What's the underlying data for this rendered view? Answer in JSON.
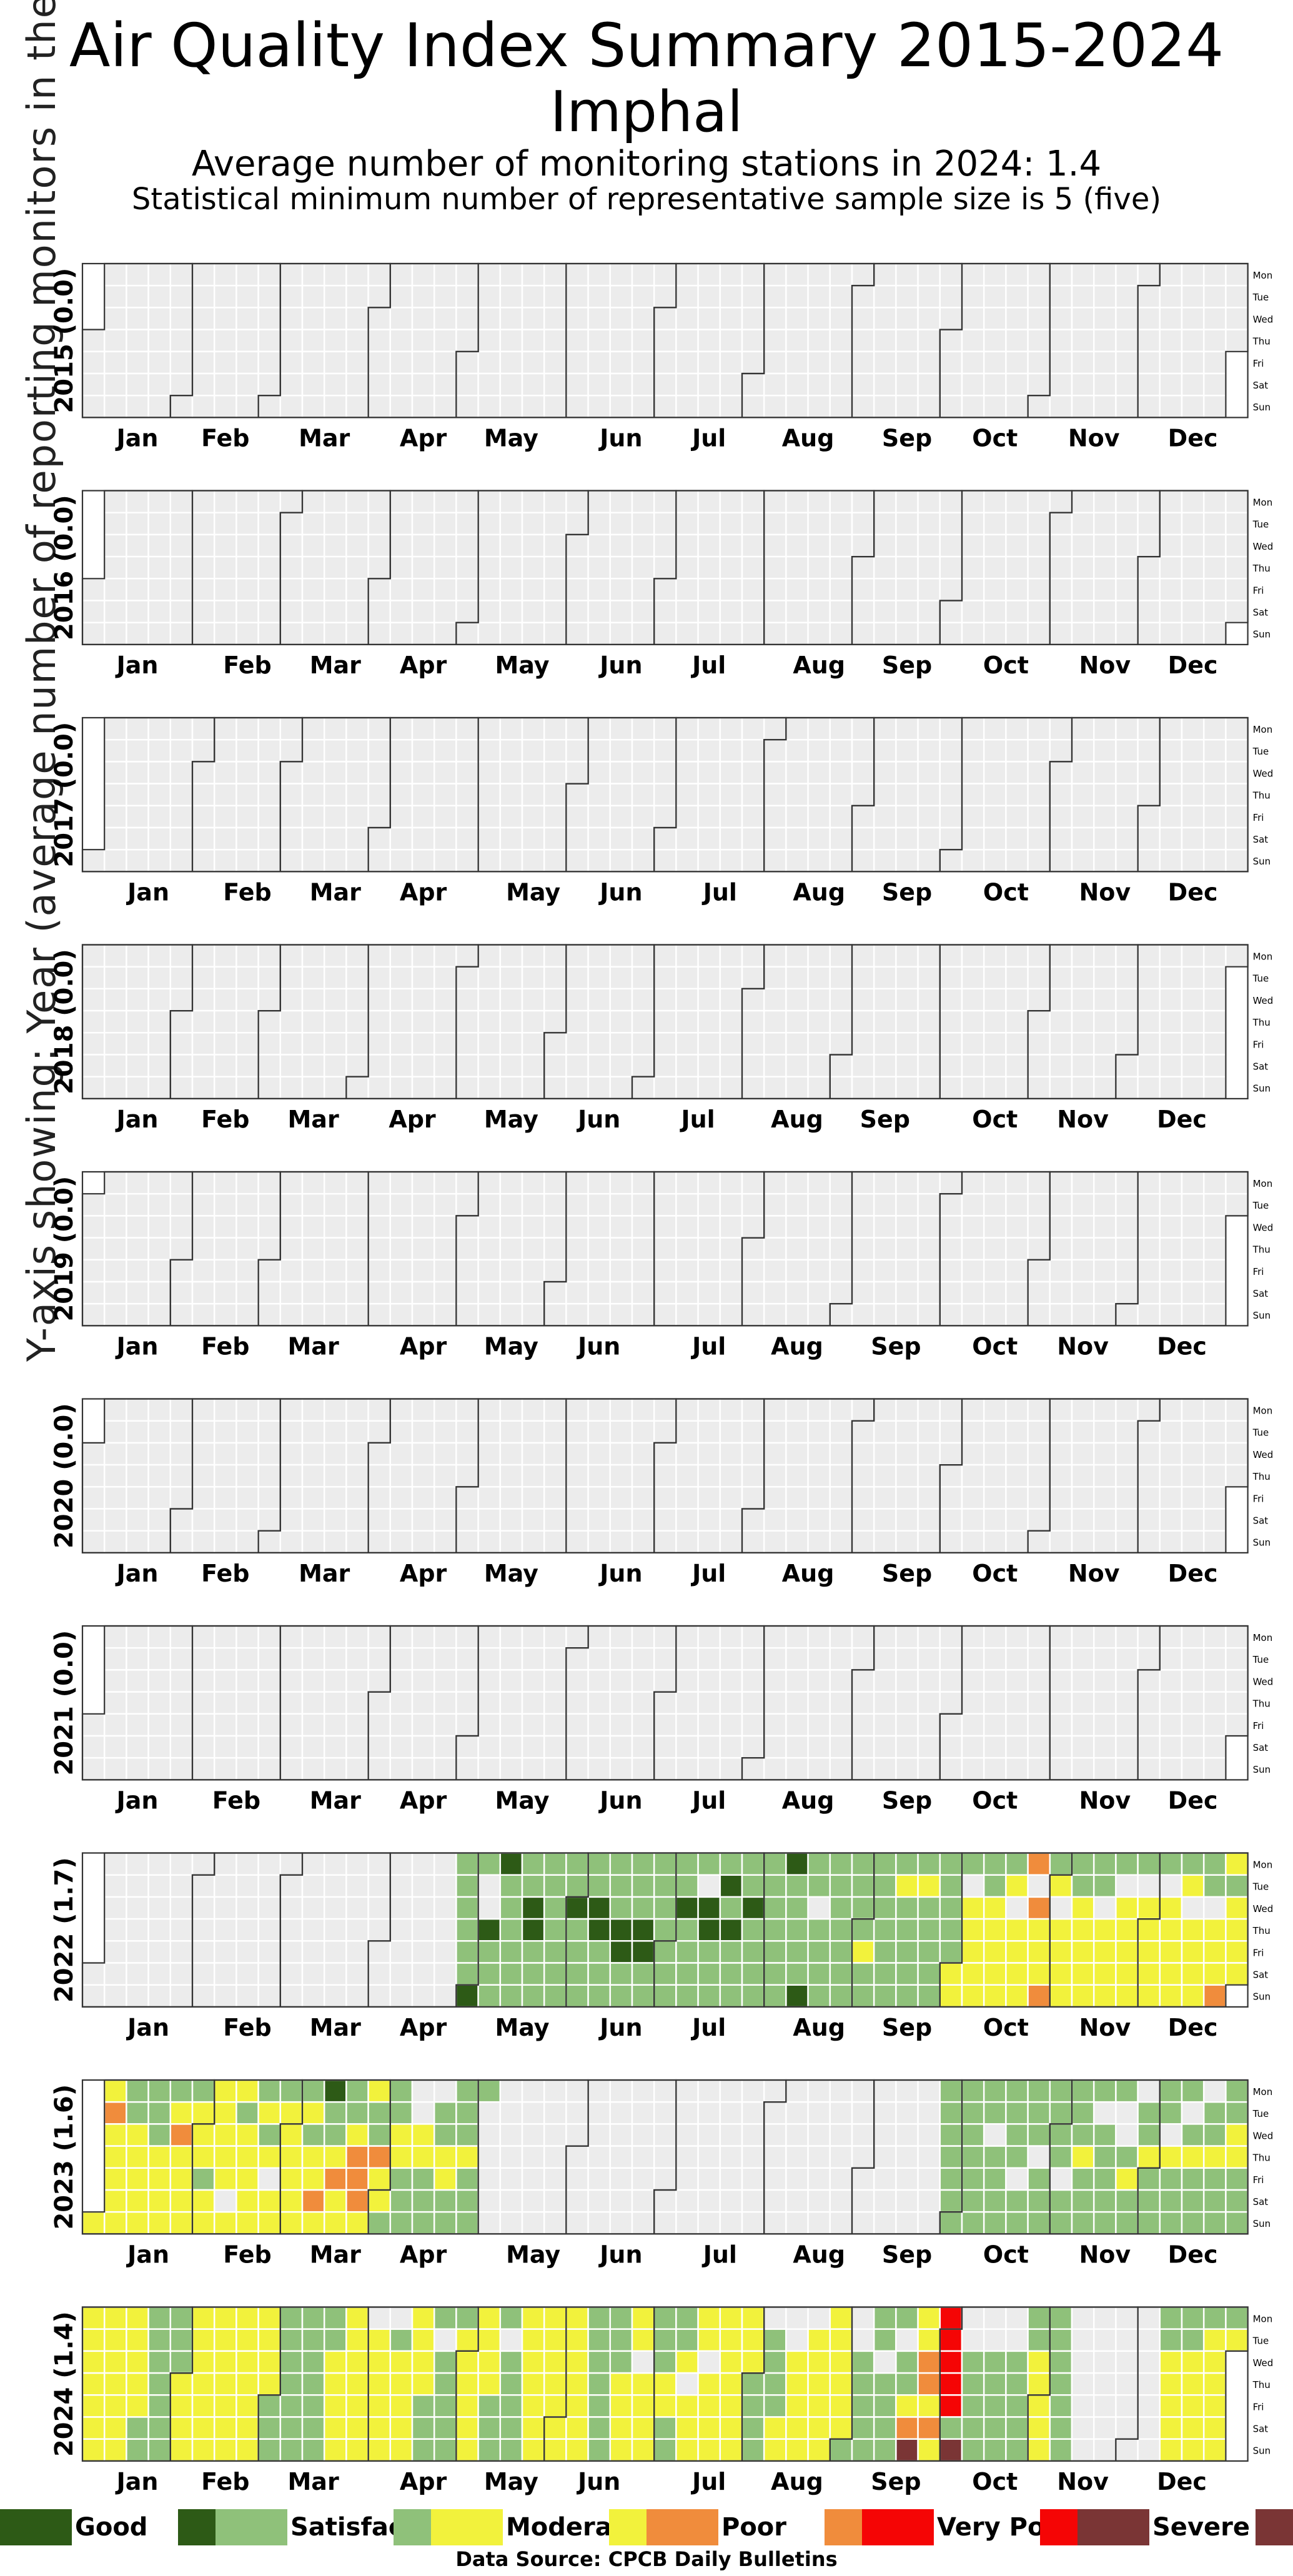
{
  "title": "Air Quality Index Summary 2015-2024",
  "city": "Imphal",
  "subtitle": "Average number of monitoring stations in 2024: 1.4",
  "subtitle2": "Statistical minimum number of representative sample size is 5 (five)",
  "y_axis_label": "Y-axis showing: Year (average number of reporting monitors in the year)",
  "source": "Data Source: CPCB Daily Bulletins",
  "colors": {
    "no_data": "#ececec",
    "good": "#2d5a16",
    "satisfactory": "#8fc17a",
    "moderate": "#f2f23c",
    "poor": "#f08c3c",
    "very_poor": "#f50505",
    "severe": "#7a3535"
  },
  "legend": [
    {
      "label": "Good",
      "color": "#2d5a16"
    },
    {
      "label": "Satisfactory",
      "color": "#8fc17a"
    },
    {
      "label": "Moderate",
      "color": "#f2f23c"
    },
    {
      "label": "Poor",
      "color": "#f08c3c"
    },
    {
      "label": "Very Poor",
      "color": "#f50505"
    },
    {
      "label": "Severe",
      "color": "#7a3535"
    }
  ],
  "chart_data": {
    "type": "heatmap",
    "layout": "calendar",
    "title": "Air Quality Index Summary 2015-2024",
    "months": [
      "Jan",
      "Feb",
      "Mar",
      "Apr",
      "May",
      "Jun",
      "Jul",
      "Aug",
      "Sep",
      "Oct",
      "Nov",
      "Dec"
    ],
    "weekdays": [
      "Mon",
      "Tue",
      "Wed",
      "Thu",
      "Fri",
      "Sat",
      "Sun"
    ],
    "categories": [
      "Good",
      "Satisfactory",
      "Moderate",
      "Poor",
      "Very Poor",
      "Severe"
    ],
    "years": [
      {
        "year": 2015,
        "label": "2015 (0.0)",
        "monitors": 0.0,
        "segments": []
      },
      {
        "year": 2016,
        "label": "2016 (0.0)",
        "monitors": 0.0,
        "segments": []
      },
      {
        "year": 2017,
        "label": "2017 (0.0)",
        "monitors": 0.0,
        "segments": []
      },
      {
        "year": 2018,
        "label": "2018 (0.0)",
        "monitors": 0.0,
        "segments": []
      },
      {
        "year": 2019,
        "label": "2019 (0.0)",
        "monitors": 0.0,
        "segments": []
      },
      {
        "year": 2020,
        "label": "2020 (0.0)",
        "monitors": 0.0,
        "segments": []
      },
      {
        "year": 2021,
        "label": "2021 (0.0)",
        "monitors": 0.0,
        "segments": []
      },
      {
        "year": 2022,
        "label": "2022 (1.7)",
        "monitors": 1.7,
        "segments": [
          {
            "from": "2022-04-25",
            "to": "2022-09-30",
            "base": "S",
            "overrides": {
              "2022-05-01": "G",
              "2022-05-05": "G",
              "2022-05-09": "G",
              "2022-05-18": "G",
              "2022-05-19": "G",
              "2022-06-01": "G",
              "2022-06-08": "G",
              "2022-06-09": "G",
              "2022-06-16": "G",
              "2022-06-17": "G",
              "2022-06-23": "G",
              "2022-06-24": "G",
              "2022-07-06": "G",
              "2022-07-13": "G",
              "2022-07-14": "G",
              "2022-07-19": "G",
              "2022-07-21": "G",
              "2022-07-27": "G",
              "2022-08-08": "G",
              "2022-08-14": "G",
              "2022-05-03": "N",
              "2022-05-04": "N",
              "2022-07-12": "N",
              "2022-08-17": "N",
              "2022-09-02": "M",
              "2022-09-13": "M",
              "2022-09-20": "M"
            }
          },
          {
            "from": "2022-10-01",
            "to": "2022-12-31",
            "base": "M",
            "overrides": {
              "2022-10-03": "S",
              "2022-10-10": "S",
              "2022-10-11": "S",
              "2022-10-17": "S",
              "2022-10-24": "P",
              "2022-10-31": "S",
              "2022-11-07": "S",
              "2022-11-08": "S",
              "2022-11-14": "S",
              "2022-11-15": "S",
              "2022-11-21": "S",
              "2022-11-28": "S",
              "2022-12-05": "S",
              "2022-12-12": "S",
              "2022-12-19": "S",
              "2022-12-20": "S",
              "2022-12-27": "S",
              "2022-10-04": "N",
              "2022-10-19": "N",
              "2022-10-25": "N",
              "2022-11-02": "N",
              "2022-11-16": "N",
              "2022-11-22": "N",
              "2022-11-29": "N",
              "2022-12-06": "N",
              "2022-12-14": "N",
              "2022-12-21": "N",
              "2022-10-26": "P",
              "2022-10-30": "P",
              "2022-12-25": "P"
            }
          }
        ]
      },
      {
        "year": 2023,
        "label": "2023 (1.6)",
        "monitors": 1.6,
        "segments": [
          {
            "from": "2023-01-01",
            "to": "2023-03-31",
            "base": "M",
            "overrides": {
              "2023-01-03": "P",
              "2023-01-25": "P",
              "2023-02-03": "S",
              "2023-02-14": "S",
              "2023-02-20": "S",
              "2023-02-22": "S",
              "2023-02-27": "S",
              "2023-03-06": "S",
              "2023-03-08": "S",
              "2023-03-14": "S",
              "2023-03-15": "S",
              "2023-03-20": "S",
              "2023-03-21": "S",
              "2023-03-28": "S",
              "2023-03-29": "S",
              "2023-01-09": "S",
              "2023-01-10": "S",
              "2023-01-16": "S",
              "2023-01-17": "S",
              "2023-01-18": "S",
              "2023-01-23": "S",
              "2023-01-30": "S",
              "2023-03-13": "G",
              "2023-03-17": "P",
              "2023-03-23": "P",
              "2023-03-24": "P",
              "2023-03-25": "P",
              "2023-03-30": "P",
              "2023-03-11": "P",
              "2023-02-24": "N",
              "2023-02-11": "N"
            }
          },
          {
            "from": "2023-04-01",
            "to": "2023-05-07",
            "base": "S",
            "overrides": {
              "2023-04-01": "M",
              "2023-04-05": "M",
              "2023-04-06": "M",
              "2023-04-12": "M",
              "2023-04-13": "M",
              "2023-04-20": "M",
              "2023-04-21": "M",
              "2023-04-27": "M",
              "2023-04-10": "N",
              "2023-04-11": "N",
              "2023-04-17": "N",
              "2023-05-02": "N",
              "2023-05-03": "N",
              "2023-05-04": "N",
              "2023-05-05": "N",
              "2023-05-06": "N",
              "2023-05-07": "N"
            }
          },
          {
            "from": "2023-09-25",
            "to": "2023-12-31",
            "base": "S",
            "overrides": {
              "2023-10-11": "N",
              "2023-10-20": "N",
              "2023-10-26": "N",
              "2023-11-03": "N",
              "2023-11-14": "N",
              "2023-11-21": "N",
              "2023-11-22": "N",
              "2023-11-27": "N",
              "2023-12-06": "N",
              "2023-12-12": "N",
              "2023-12-18": "N",
              "2023-11-09": "M",
              "2023-11-24": "M",
              "2023-11-30": "M",
              "2023-12-21": "M",
              "2023-12-27": "M",
              "2023-12-28": "M",
              "2023-12-14": "M",
              "2023-12-07": "M"
            }
          }
        ]
      },
      {
        "year": 2024,
        "label": "2024 (1.4)",
        "monitors": 1.4,
        "segments": [
          {
            "from": "2024-01-01",
            "to": "2024-10-31",
            "base": "mix",
            "overrides": {
              "2024-09-30": "V",
              "2024-10-01": "V",
              "2024-10-02": "V",
              "2024-10-03": "V",
              "2024-10-04": "V",
              "2024-09-28": "P",
              "2024-09-25": "P",
              "2024-09-26": "P",
              "2024-09-21": "P",
              "2024-09-22": "X",
              "2024-10-06": "X",
              "2024-08-05": "N",
              "2024-08-12": "N",
              "2024-08-13": "N",
              "2024-08-19": "N",
              "2024-09-02": "N",
              "2024-09-03": "N",
              "2024-09-11": "N",
              "2024-09-17": "N",
              "2024-10-07": "N",
              "2024-10-08": "N",
              "2024-10-14": "N",
              "2024-10-15": "N",
              "2024-10-21": "N",
              "2024-10-22": "N",
              "2024-04-01": "N",
              "2024-04-08": "N",
              "2024-04-23": "N",
              "2024-05-14": "N",
              "2024-06-26": "N",
              "2024-07-11": "N",
              "2024-07-17": "N"
            }
          },
          {
            "from": "2024-11-01",
            "to": "2024-12-31",
            "base": "M",
            "overrides": {
              "2024-11-04": "S",
              "2024-11-05": "S",
              "2024-11-06": "S",
              "2024-11-07": "S",
              "2024-11-08": "S",
              "2024-11-09": "S",
              "2024-11-10": "S",
              "2024-11-11": "N",
              "2024-11-12": "N",
              "2024-11-13": "N",
              "2024-11-14": "N",
              "2024-11-15": "N",
              "2024-11-16": "N",
              "2024-11-17": "N",
              "2024-11-18": "N",
              "2024-11-19": "N",
              "2024-11-20": "N",
              "2024-11-21": "N",
              "2024-11-22": "N",
              "2024-11-23": "N",
              "2024-11-24": "N",
              "2024-11-25": "N",
              "2024-11-26": "N",
              "2024-11-27": "N",
              "2024-11-28": "N",
              "2024-11-29": "N",
              "2024-11-30": "N",
              "2024-12-01": "N",
              "2024-12-02": "N",
              "2024-12-03": "N",
              "2024-12-04": "N",
              "2024-12-05": "N",
              "2024-12-06": "N",
              "2024-12-07": "N",
              "2024-12-08": "N",
              "2024-12-09": "S",
              "2024-12-10": "S",
              "2024-12-16": "S",
              "2024-12-17": "S",
              "2024-12-23": "S",
              "2024-12-30": "S"
            }
          }
        ]
      }
    ]
  }
}
